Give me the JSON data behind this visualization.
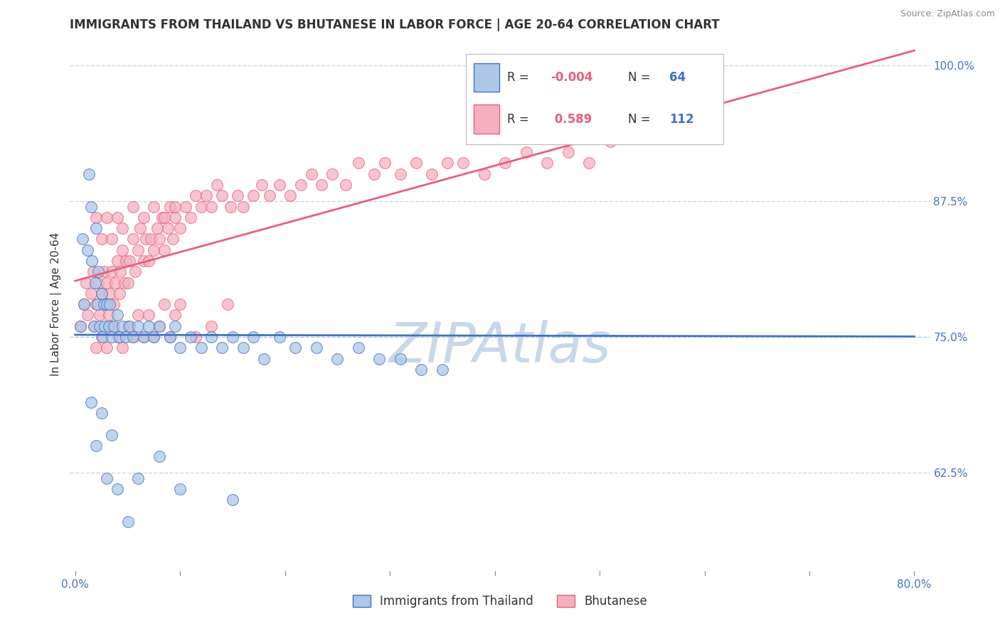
{
  "title": "IMMIGRANTS FROM THAILAND VS BHUTANESE IN LABOR FORCE | AGE 20-64 CORRELATION CHART",
  "source_text": "Source: ZipAtlas.com",
  "ylabel": "In Labor Force | Age 20-64",
  "xlim": [
    -0.005,
    0.815
  ],
  "ylim": [
    0.535,
    1.025
  ],
  "xticks": [
    0.0,
    0.1,
    0.2,
    0.3,
    0.4,
    0.5,
    0.6,
    0.7,
    0.8
  ],
  "xticklabels": [
    "0.0%",
    "",
    "",
    "",
    "",
    "",
    "",
    "",
    "80.0%"
  ],
  "yticks_right": [
    0.625,
    0.75,
    0.875,
    1.0
  ],
  "yticklabels_right": [
    "62.5%",
    "75.0%",
    "87.5%",
    "100.0%"
  ],
  "thailand_R": -0.004,
  "thailand_N": 64,
  "bhutanese_R": 0.589,
  "bhutanese_N": 112,
  "thailand_color": "#adc8e8",
  "bhutanese_color": "#f5b0c0",
  "thailand_line_color": "#4472c4",
  "bhutanese_line_color": "#e8607a",
  "grid_color": "#c8d8ea",
  "grid75_color": "#8ab4d8",
  "background_color": "#ffffff",
  "watermark": "ZIPAtlas",
  "watermark_color": "#c8d8ea",
  "title_fontsize": 12,
  "tick_fontsize": 11,
  "ylabel_fontsize": 11,
  "thailand_x": [
    0.005,
    0.007,
    0.008,
    0.012,
    0.013,
    0.015,
    0.016,
    0.018,
    0.019,
    0.02,
    0.021,
    0.022,
    0.023,
    0.025,
    0.026,
    0.027,
    0.028,
    0.03,
    0.032,
    0.033,
    0.035,
    0.037,
    0.04,
    0.042,
    0.045,
    0.048,
    0.052,
    0.055,
    0.06,
    0.065,
    0.07,
    0.075,
    0.08,
    0.09,
    0.095,
    0.1,
    0.11,
    0.12,
    0.13,
    0.14,
    0.15,
    0.16,
    0.17,
    0.18,
    0.195,
    0.21,
    0.23,
    0.25,
    0.27,
    0.29,
    0.31,
    0.33,
    0.35,
    0.015,
    0.02,
    0.025,
    0.03,
    0.035,
    0.04,
    0.05,
    0.06,
    0.08,
    0.1,
    0.15
  ],
  "thailand_y": [
    0.76,
    0.84,
    0.78,
    0.83,
    0.9,
    0.87,
    0.82,
    0.76,
    0.8,
    0.85,
    0.78,
    0.81,
    0.76,
    0.79,
    0.75,
    0.78,
    0.76,
    0.78,
    0.76,
    0.78,
    0.75,
    0.76,
    0.77,
    0.75,
    0.76,
    0.75,
    0.76,
    0.75,
    0.76,
    0.75,
    0.76,
    0.75,
    0.76,
    0.75,
    0.76,
    0.74,
    0.75,
    0.74,
    0.75,
    0.74,
    0.75,
    0.74,
    0.75,
    0.73,
    0.75,
    0.74,
    0.74,
    0.73,
    0.74,
    0.73,
    0.73,
    0.72,
    0.72,
    0.69,
    0.65,
    0.68,
    0.62,
    0.66,
    0.61,
    0.58,
    0.62,
    0.64,
    0.61,
    0.6
  ],
  "bhutanese_x": [
    0.005,
    0.008,
    0.01,
    0.012,
    0.015,
    0.017,
    0.018,
    0.02,
    0.022,
    0.023,
    0.025,
    0.027,
    0.028,
    0.03,
    0.032,
    0.033,
    0.035,
    0.037,
    0.038,
    0.04,
    0.042,
    0.043,
    0.045,
    0.047,
    0.048,
    0.05,
    0.052,
    0.055,
    0.057,
    0.06,
    0.062,
    0.065,
    0.067,
    0.07,
    0.072,
    0.075,
    0.078,
    0.08,
    0.083,
    0.085,
    0.088,
    0.09,
    0.093,
    0.095,
    0.1,
    0.105,
    0.11,
    0.115,
    0.12,
    0.125,
    0.13,
    0.135,
    0.14,
    0.148,
    0.155,
    0.16,
    0.17,
    0.178,
    0.185,
    0.195,
    0.205,
    0.215,
    0.225,
    0.235,
    0.245,
    0.258,
    0.27,
    0.285,
    0.295,
    0.31,
    0.325,
    0.34,
    0.355,
    0.37,
    0.39,
    0.41,
    0.43,
    0.45,
    0.47,
    0.49,
    0.51,
    0.02,
    0.025,
    0.03,
    0.035,
    0.04,
    0.045,
    0.05,
    0.055,
    0.06,
    0.065,
    0.07,
    0.075,
    0.08,
    0.085,
    0.09,
    0.095,
    0.1,
    0.115,
    0.13,
    0.145,
    0.02,
    0.025,
    0.03,
    0.035,
    0.04,
    0.045,
    0.055,
    0.065,
    0.075,
    0.085,
    0.095
  ],
  "bhutanese_y": [
    0.76,
    0.78,
    0.8,
    0.77,
    0.79,
    0.81,
    0.76,
    0.78,
    0.8,
    0.77,
    0.79,
    0.81,
    0.78,
    0.8,
    0.77,
    0.79,
    0.81,
    0.78,
    0.8,
    0.82,
    0.79,
    0.81,
    0.83,
    0.8,
    0.82,
    0.8,
    0.82,
    0.84,
    0.81,
    0.83,
    0.85,
    0.82,
    0.84,
    0.82,
    0.84,
    0.83,
    0.85,
    0.84,
    0.86,
    0.83,
    0.85,
    0.87,
    0.84,
    0.86,
    0.85,
    0.87,
    0.86,
    0.88,
    0.87,
    0.88,
    0.87,
    0.89,
    0.88,
    0.87,
    0.88,
    0.87,
    0.88,
    0.89,
    0.88,
    0.89,
    0.88,
    0.89,
    0.9,
    0.89,
    0.9,
    0.89,
    0.91,
    0.9,
    0.91,
    0.9,
    0.91,
    0.9,
    0.91,
    0.91,
    0.9,
    0.91,
    0.92,
    0.91,
    0.92,
    0.91,
    0.93,
    0.74,
    0.75,
    0.74,
    0.76,
    0.75,
    0.74,
    0.76,
    0.75,
    0.77,
    0.75,
    0.77,
    0.75,
    0.76,
    0.78,
    0.75,
    0.77,
    0.78,
    0.75,
    0.76,
    0.78,
    0.86,
    0.84,
    0.86,
    0.84,
    0.86,
    0.85,
    0.87,
    0.86,
    0.87,
    0.86,
    0.87
  ]
}
